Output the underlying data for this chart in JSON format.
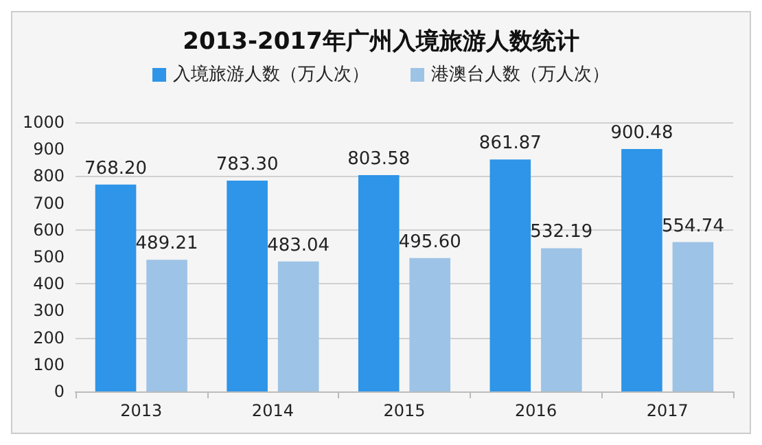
{
  "chart_data": {
    "type": "bar",
    "title": "2013-2017年广州入境旅游人数统计",
    "categories": [
      "2013",
      "2014",
      "2015",
      "2016",
      "2017"
    ],
    "series": [
      {
        "name": "入境旅游人数（万人次）",
        "color": "#2e95e8",
        "values": [
          768.2,
          783.3,
          803.58,
          861.87,
          900.48
        ],
        "value_labels": [
          "768.20",
          "783.30",
          "803.58",
          "861.87",
          "900.48"
        ]
      },
      {
        "name": "港澳台人数（万人次）",
        "color": "#9dc3e6",
        "values": [
          489.21,
          483.04,
          495.6,
          532.19,
          554.74
        ],
        "value_labels": [
          "489.21",
          "483.04",
          "495.60",
          "532.19",
          "554.74"
        ]
      }
    ],
    "ylim": [
      0,
      1000
    ],
    "yticks": [
      0,
      100,
      200,
      300,
      400,
      500,
      600,
      700,
      800,
      900,
      1000
    ],
    "grid": "y",
    "legend": "top"
  }
}
